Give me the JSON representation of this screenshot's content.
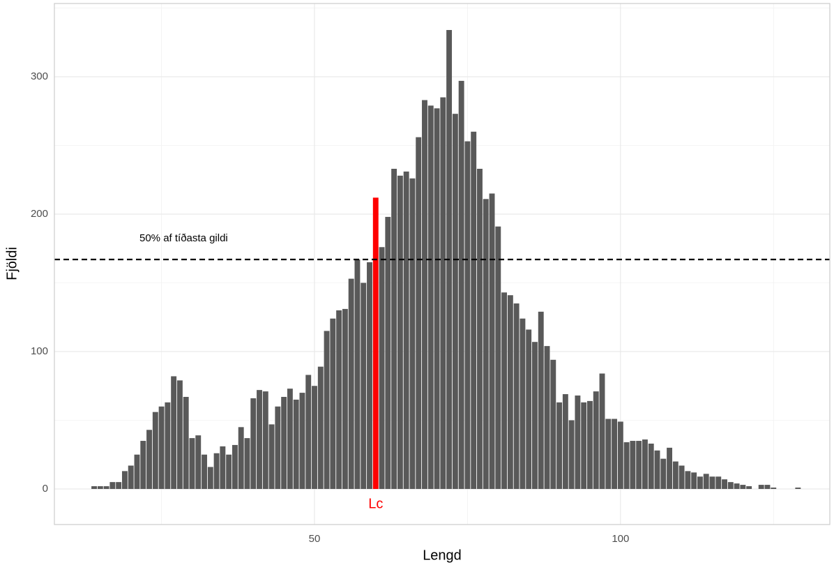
{
  "chart_data": {
    "type": "bar",
    "x_label": "Lengd",
    "y_label": "Fjöldi",
    "x": [
      14,
      15,
      16,
      17,
      18,
      19,
      20,
      21,
      22,
      23,
      24,
      25,
      26,
      27,
      28,
      29,
      30,
      31,
      32,
      33,
      34,
      35,
      36,
      37,
      38,
      39,
      40,
      41,
      42,
      43,
      44,
      45,
      46,
      47,
      48,
      49,
      50,
      51,
      52,
      53,
      54,
      55,
      56,
      57,
      58,
      59,
      60,
      61,
      62,
      63,
      64,
      65,
      66,
      67,
      68,
      69,
      70,
      71,
      72,
      73,
      74,
      75,
      76,
      77,
      78,
      79,
      80,
      81,
      82,
      83,
      84,
      85,
      86,
      87,
      88,
      89,
      90,
      91,
      92,
      93,
      94,
      95,
      96,
      97,
      98,
      99,
      100,
      101,
      102,
      103,
      104,
      105,
      106,
      107,
      108,
      109,
      110,
      111,
      112,
      113,
      114,
      115,
      116,
      117,
      118,
      119,
      120,
      121,
      122,
      123,
      124,
      125,
      126,
      127,
      128,
      129
    ],
    "values": [
      2,
      2,
      2,
      5,
      5,
      13,
      17,
      25,
      35,
      43,
      56,
      60,
      63,
      82,
      79,
      67,
      37,
      39,
      25,
      16,
      26,
      31,
      25,
      32,
      45,
      37,
      66,
      72,
      71,
      47,
      60,
      67,
      73,
      65,
      70,
      83,
      75,
      89,
      115,
      124,
      130,
      131,
      153,
      167,
      150,
      165,
      212,
      176,
      198,
      233,
      228,
      231,
      226,
      256,
      283,
      279,
      277,
      285,
      334,
      273,
      297,
      253,
      260,
      233,
      211,
      215,
      191,
      143,
      141,
      135,
      124,
      116,
      107,
      129,
      104,
      94,
      63,
      69,
      50,
      68,
      63,
      64,
      71,
      84,
      51,
      51,
      49,
      34,
      35,
      35,
      36,
      33,
      28,
      22,
      30,
      20,
      17,
      13,
      12,
      9,
      11,
      9,
      9,
      7,
      5,
      4,
      3,
      2,
      0,
      3,
      3,
      1,
      0,
      0,
      0,
      1
    ],
    "color": "#595959",
    "xlim": [
      7.5,
      134.2
    ],
    "ylim": [
      -25.9,
      353.3
    ],
    "xticks": [
      50,
      100
    ],
    "yticks": [
      0,
      100,
      200,
      300
    ],
    "grid": true,
    "hline": {
      "y": 167,
      "label": "50% af tíðasta gildi",
      "linestyle": "dashed",
      "color": "#000000"
    },
    "annotations": [
      {
        "text": "Lc",
        "x": 60,
        "color": "#ff0000"
      }
    ]
  }
}
